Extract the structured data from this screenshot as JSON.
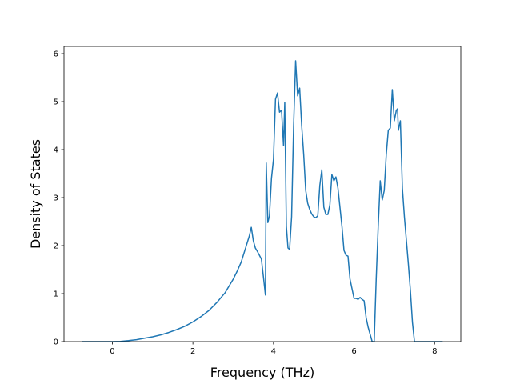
{
  "chart_data": {
    "type": "line",
    "title": "",
    "xlabel": "Frequency (THz)",
    "ylabel": "Density of States",
    "xlim": [
      -1.2,
      8.65
    ],
    "ylim": [
      0,
      6.15
    ],
    "xticks": [
      0,
      2,
      4,
      6,
      8
    ],
    "yticks": [
      0,
      1,
      2,
      3,
      4,
      5,
      6
    ],
    "grid": false,
    "legend": "none",
    "colors": {
      "line": "#1f77b4"
    },
    "series": [
      {
        "x": [
          -0.75,
          -0.4,
          0,
          0.2,
          0.4,
          0.6,
          0.8,
          1.0,
          1.2,
          1.4,
          1.6,
          1.8,
          2.0,
          2.2,
          2.4,
          2.6,
          2.8,
          3.0,
          3.1,
          3.2,
          3.3,
          3.4,
          3.45,
          3.5,
          3.55,
          3.6,
          3.7,
          3.75,
          3.8,
          3.82,
          3.86,
          3.9,
          3.95,
          4.0,
          4.05,
          4.1,
          4.15,
          4.2,
          4.25,
          4.28,
          4.32,
          4.36,
          4.4,
          4.45,
          4.5,
          4.55,
          4.6,
          4.65,
          4.7,
          4.75,
          4.8,
          4.85,
          4.9,
          4.95,
          5.0,
          5.05,
          5.1,
          5.15,
          5.2,
          5.25,
          5.3,
          5.35,
          5.4,
          5.45,
          5.5,
          5.55,
          5.6,
          5.65,
          5.7,
          5.75,
          5.8,
          5.85,
          5.9,
          6.0,
          6.05,
          6.1,
          6.15,
          6.2,
          6.25,
          6.3,
          6.35,
          6.45,
          6.5,
          6.55,
          6.6,
          6.65,
          6.7,
          6.75,
          6.8,
          6.85,
          6.9,
          6.95,
          7.0,
          7.05,
          7.08,
          7.1,
          7.15,
          7.2,
          7.25,
          7.3,
          7.35,
          7.4,
          7.45,
          7.5,
          7.55,
          7.6,
          7.8,
          8.2
        ],
        "y": [
          0,
          0,
          0,
          0.005,
          0.02,
          0.04,
          0.07,
          0.1,
          0.14,
          0.19,
          0.25,
          0.32,
          0.41,
          0.52,
          0.65,
          0.82,
          1.02,
          1.3,
          1.47,
          1.66,
          1.93,
          2.2,
          2.38,
          2.1,
          1.95,
          1.88,
          1.72,
          1.35,
          0.97,
          3.72,
          2.48,
          2.62,
          3.4,
          3.8,
          5.05,
          5.18,
          4.78,
          4.82,
          4.08,
          4.98,
          2.4,
          1.95,
          1.92,
          2.6,
          4.5,
          5.85,
          5.12,
          5.28,
          4.5,
          3.9,
          3.15,
          2.88,
          2.75,
          2.66,
          2.6,
          2.58,
          2.62,
          3.25,
          3.58,
          2.8,
          2.65,
          2.65,
          2.85,
          3.48,
          3.35,
          3.43,
          3.2,
          2.8,
          2.4,
          1.9,
          1.8,
          1.78,
          1.3,
          0.9,
          0.9,
          0.88,
          0.92,
          0.88,
          0.85,
          0.5,
          0.3,
          0,
          0,
          1.3,
          2.4,
          3.35,
          2.95,
          3.15,
          3.9,
          4.4,
          4.45,
          5.25,
          4.6,
          4.82,
          4.85,
          4.4,
          4.6,
          3.2,
          2.6,
          2.1,
          1.6,
          1.05,
          0.4,
          0,
          0,
          0,
          0,
          0
        ]
      }
    ]
  }
}
